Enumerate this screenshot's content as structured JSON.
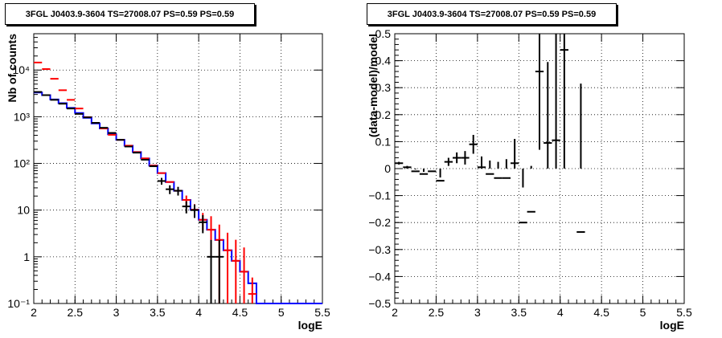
{
  "chart_data": [
    {
      "type": "line",
      "title": "3FGL J0403.9-3604 TS=27008.07 PS=0.59 PS=0.59",
      "xlabel": "logE",
      "ylabel": "Nb of counts",
      "xlim": [
        2,
        5.5
      ],
      "ylim": [
        0.1,
        60000
      ],
      "yscale": "log",
      "grid": true,
      "xticks": [
        2,
        2.5,
        3,
        3.5,
        4,
        4.5,
        5,
        5.5
      ],
      "xtick_labels": [
        "2",
        "2.5",
        "3",
        "3.5",
        "4",
        "4.5",
        "5",
        "5.5"
      ],
      "yticks": [
        0.1,
        1,
        10,
        100,
        1000,
        10000
      ],
      "ytick_labels": [
        "10⁻¹",
        "1",
        "10",
        "10²",
        "10³",
        "10⁴"
      ],
      "bin_edges": [
        2.0,
        2.1,
        2.2,
        2.3,
        2.4,
        2.5,
        2.6,
        2.7,
        2.8,
        2.9,
        3.0,
        3.1,
        3.2,
        3.3,
        3.4,
        3.5,
        3.6,
        3.7,
        3.8,
        3.9,
        4.0,
        4.1,
        4.2,
        4.3,
        4.4,
        4.5,
        4.6,
        4.7,
        4.8,
        4.9,
        5.0,
        5.1,
        5.2,
        5.3,
        5.4,
        5.5
      ],
      "series": [
        {
          "color": "#0000ff",
          "style": "step",
          "values": [
            3300,
            2900,
            2350,
            1950,
            1550,
            1200,
            950,
            720,
            560,
            420,
            320,
            240,
            175,
            128,
            90,
            62,
            40,
            26,
            16.5,
            10.2,
            6.2,
            3.8,
            2.3,
            1.38,
            0.82,
            0.48,
            0.27,
            0.1,
            0.1,
            0.1,
            0.1,
            0.1,
            0.1,
            0.1,
            0.1
          ]
        },
        {
          "color": "#ff0000",
          "style": "errorbar",
          "x": [
            2.05,
            2.15,
            2.25,
            2.35,
            2.45,
            2.55,
            2.65,
            2.75,
            2.85,
            2.95,
            3.05,
            3.15,
            3.25,
            3.35,
            3.45,
            3.55,
            3.65,
            3.75,
            3.85,
            3.95,
            4.05,
            4.15,
            4.25,
            4.35,
            4.45,
            4.55,
            4.65
          ],
          "y": [
            14500,
            10500,
            6500,
            3700,
            2300,
            1500,
            980,
            740,
            560,
            410,
            320,
            240,
            175,
            128,
            90,
            62,
            40,
            26,
            16.5,
            10.2,
            6.2,
            3.8,
            2.3,
            1.38,
            0.82,
            0.48,
            0.16
          ],
          "err_low": [
            0,
            0,
            0,
            0,
            0,
            0,
            0,
            0,
            0,
            0,
            0,
            0,
            0,
            0,
            0,
            0,
            0,
            5,
            4,
            3.2,
            2.5,
            2.8,
            2.2,
            1.35,
            0.8,
            0.45,
            0.06
          ],
          "err_high": [
            0,
            0,
            0,
            0,
            0,
            0,
            0,
            0,
            0,
            0,
            0,
            0,
            0,
            0,
            0,
            0,
            0,
            5,
            4,
            3.2,
            2.5,
            3.6,
            2.6,
            1.9,
            1.5,
            1.1,
            0.2
          ]
        },
        {
          "color": "#000000",
          "style": "errorbar",
          "x": [
            2.05,
            2.15,
            2.25,
            2.35,
            2.45,
            2.55,
            2.65,
            2.75,
            2.85,
            2.95,
            3.05,
            3.15,
            3.25,
            3.35,
            3.45,
            3.55,
            3.65,
            3.75,
            3.85,
            3.95,
            4.05,
            4.15,
            4.25
          ],
          "y": [
            3400,
            2900,
            2300,
            1900,
            1500,
            1150,
            970,
            740,
            580,
            450,
            320,
            230,
            170,
            120,
            87,
            42,
            28,
            26,
            12,
            10,
            5.5,
            1,
            1
          ],
          "err_low": [
            0,
            0,
            0,
            0,
            0,
            0,
            0,
            0,
            0,
            0,
            0,
            0,
            0,
            0,
            0,
            7,
            6,
            5.5,
            3.5,
            3.2,
            2.3,
            0.9,
            0.9
          ],
          "err_high": [
            0,
            0,
            0,
            0,
            0,
            0,
            0,
            0,
            0,
            0,
            0,
            0,
            0,
            0,
            0,
            7,
            6,
            5.5,
            3.5,
            3.2,
            2.3,
            1.3,
            1.3
          ]
        }
      ]
    },
    {
      "type": "scatter",
      "title": "3FGL J0403.9-3604 TS=27008.07 PS=0.59 PS=0.59",
      "xlabel": "logE",
      "ylabel": "(data-model)/model",
      "xlim": [
        2,
        5.5
      ],
      "ylim": [
        -0.5,
        0.5
      ],
      "grid": true,
      "xticks": [
        2,
        2.5,
        3,
        3.5,
        4,
        4.5,
        5,
        5.5
      ],
      "xtick_labels": [
        "2",
        "2.5",
        "3",
        "3.5",
        "4",
        "4.5",
        "5",
        "5.5"
      ],
      "yticks": [
        -0.5,
        -0.4,
        -0.3,
        -0.2,
        -0.1,
        0,
        0.1,
        0.2,
        0.3,
        0.4,
        0.5
      ],
      "ytick_labels": [
        "−0.5",
        "−0.4",
        "−0.3",
        "−0.2",
        "−0.1",
        "0",
        "0.1",
        "0.2",
        "0.3",
        "0.4",
        "0.5"
      ],
      "series": [
        {
          "color": "#000000",
          "x": [
            2.05,
            2.15,
            2.25,
            2.35,
            2.45,
            2.55,
            2.65,
            2.75,
            2.85,
            2.95,
            3.05,
            3.15,
            3.25,
            3.35,
            3.45,
            3.55,
            3.65,
            3.75,
            3.85,
            3.95,
            4.05,
            4.25
          ],
          "y": [
            0.02,
            0.005,
            -0.01,
            -0.02,
            -0.01,
            -0.045,
            0.025,
            0.04,
            0.04,
            0.09,
            0.005,
            -0.02,
            -0.035,
            -0.035,
            0.02,
            -0.2,
            -0.16,
            0.36,
            0.095,
            0.105,
            0.44,
            -0.235
          ],
          "err_low": [
            0.005,
            0.005,
            0.007,
            0.008,
            0.01,
            0.012,
            0.015,
            0.02,
            0.025,
            0.035,
            0.04,
            0.05,
            0.06,
            0.07,
            0.09,
            0.13,
            0.17,
            0.29,
            0.3,
            0.42,
            0.68,
            0.55
          ],
          "err_high": [
            0.005,
            0.005,
            0.007,
            0.008,
            0.01,
            0.012,
            0.015,
            0.02,
            0.025,
            0.035,
            0.04,
            0.05,
            0.06,
            0.07,
            0.09,
            0.13,
            0.17,
            0.29,
            0.3,
            0.42,
            0.68,
            0.55
          ],
          "x_halfwidth": 0.05
        }
      ]
    }
  ]
}
